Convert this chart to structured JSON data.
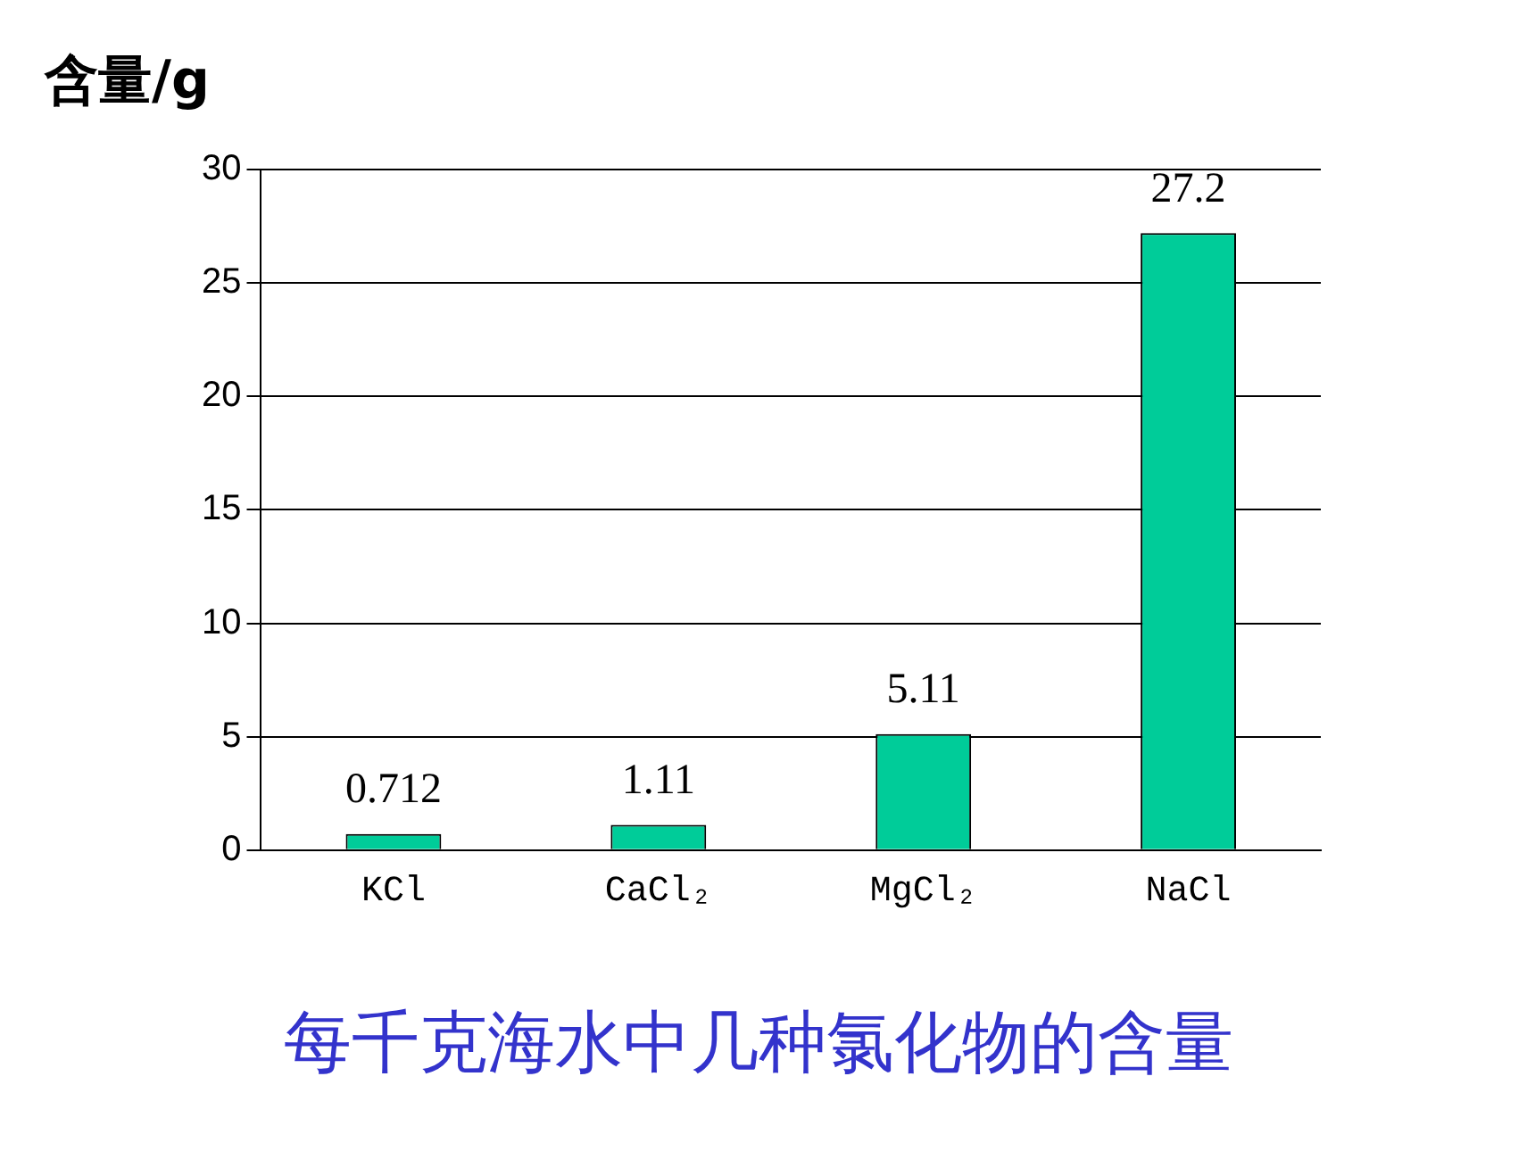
{
  "chart_data": {
    "type": "bar",
    "title": "每千克海水中几种氯化物的含量",
    "ylabel": "含量/g",
    "categories": [
      "KCl",
      "CaCl₂",
      "MgCl₂",
      "NaCl"
    ],
    "values": [
      0.712,
      1.11,
      5.11,
      27.2
    ],
    "color": "#00cc99",
    "ylim": [
      0,
      30
    ],
    "yticks": [
      0,
      5,
      10,
      15,
      20,
      25,
      30
    ],
    "grid": "y",
    "data_labels": true
  }
}
